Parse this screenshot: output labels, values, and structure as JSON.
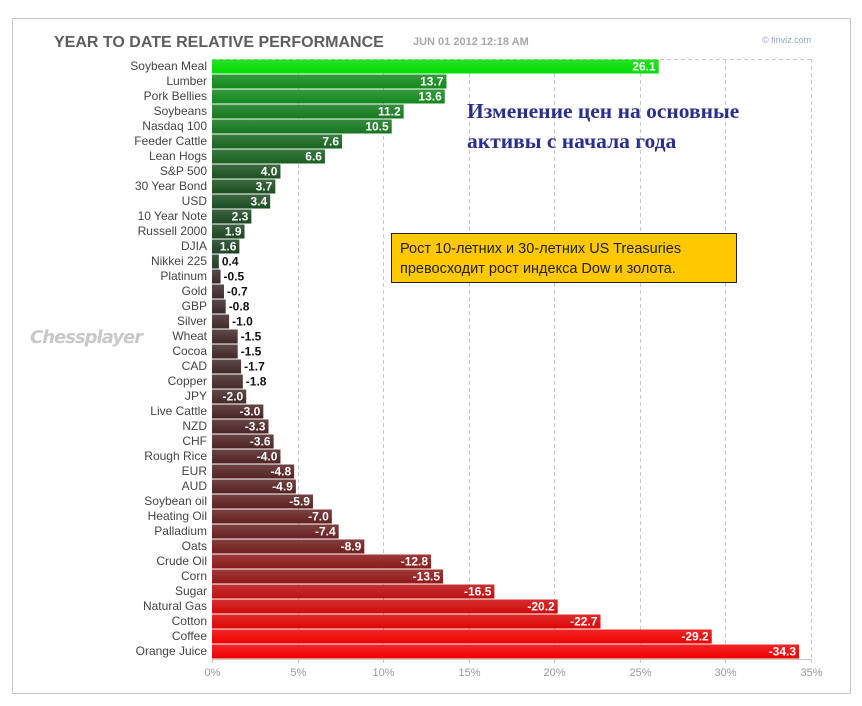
{
  "header": {
    "title": "YEAR TO DATE RELATIVE PERFORMANCE",
    "timestamp": "JUN 01 2012 12:18 AM",
    "brand": "© finviz.com"
  },
  "watermark": "Chessplayer",
  "annotations": {
    "headline_line1": "Изменение цен на основные",
    "headline_line2": "активы с начала года",
    "note_line1": "Рост 10-летних и 30-летних US Treasuries",
    "note_line2": "превосходит рост индекса Dow и золота."
  },
  "chart_data": {
    "type": "bar",
    "orientation": "horizontal",
    "title": "YEAR TO DATE RELATIVE PERFORMANCE",
    "xlabel": "",
    "ylabel": "",
    "xlim": [
      0,
      35
    ],
    "x_ticks": [
      "0%",
      "5%",
      "10%",
      "15%",
      "20%",
      "25%",
      "30%",
      "35%"
    ],
    "grid": true,
    "bar_length": "absolute value",
    "categories": [
      "Soybean Meal",
      "Lumber",
      "Pork Bellies",
      "Soybeans",
      "Nasdaq 100",
      "Feeder Cattle",
      "Lean Hogs",
      "S&P 500",
      "30 Year Bond",
      "USD",
      "10 Year Note",
      "Russell 2000",
      "DJIA",
      "Nikkei 225",
      "Platinum",
      "Gold",
      "GBP",
      "Silver",
      "Wheat",
      "Cocoa",
      "CAD",
      "Copper",
      "JPY",
      "Live Cattle",
      "NZD",
      "CHF",
      "Rough Rice",
      "EUR",
      "AUD",
      "Soybean oil",
      "Heating Oil",
      "Palladium",
      "Oats",
      "Crude Oil",
      "Corn",
      "Sugar",
      "Natural Gas",
      "Cotton",
      "Coffee",
      "Orange Juice"
    ],
    "values": [
      26.1,
      13.7,
      13.6,
      11.2,
      10.5,
      7.6,
      6.6,
      4.0,
      3.7,
      3.4,
      2.3,
      1.9,
      1.6,
      0.4,
      -0.5,
      -0.7,
      -0.8,
      -1.0,
      -1.5,
      -1.5,
      -1.7,
      -1.8,
      -2.0,
      -3.0,
      -3.3,
      -3.6,
      -4.0,
      -4.8,
      -4.9,
      -5.9,
      -7.0,
      -7.4,
      -8.9,
      -12.8,
      -13.5,
      -16.5,
      -20.2,
      -22.7,
      -29.2,
      -34.3
    ],
    "labels": [
      "26.1",
      "13.7",
      "13.6",
      "11.2",
      "10.5",
      "7.6",
      "6.6",
      "4.0",
      "3.7",
      "3.4",
      "2.3",
      "1.9",
      "1.6",
      "0.4",
      "-0.5",
      "-0.7",
      "-0.8",
      "-1.0",
      "-1.5",
      "-1.5",
      "-1.7",
      "-1.8",
      "-2.0",
      "-3.0",
      "-3.3",
      "-3.6",
      "-4.0",
      "-4.8",
      "-4.9",
      "-5.9",
      "-7.0",
      "-7.4",
      "-8.9",
      "-12.8",
      "-13.5",
      "-16.5",
      "-20.2",
      "-22.7",
      "-29.2",
      "-34.3"
    ],
    "colors": {
      "positive_strong": "#00dd00",
      "positive_dark": "#1e3a22",
      "neutral": "#3a2a2a",
      "negative_dark": "#5a1a1a",
      "negative_strong": "#ee0000"
    }
  }
}
